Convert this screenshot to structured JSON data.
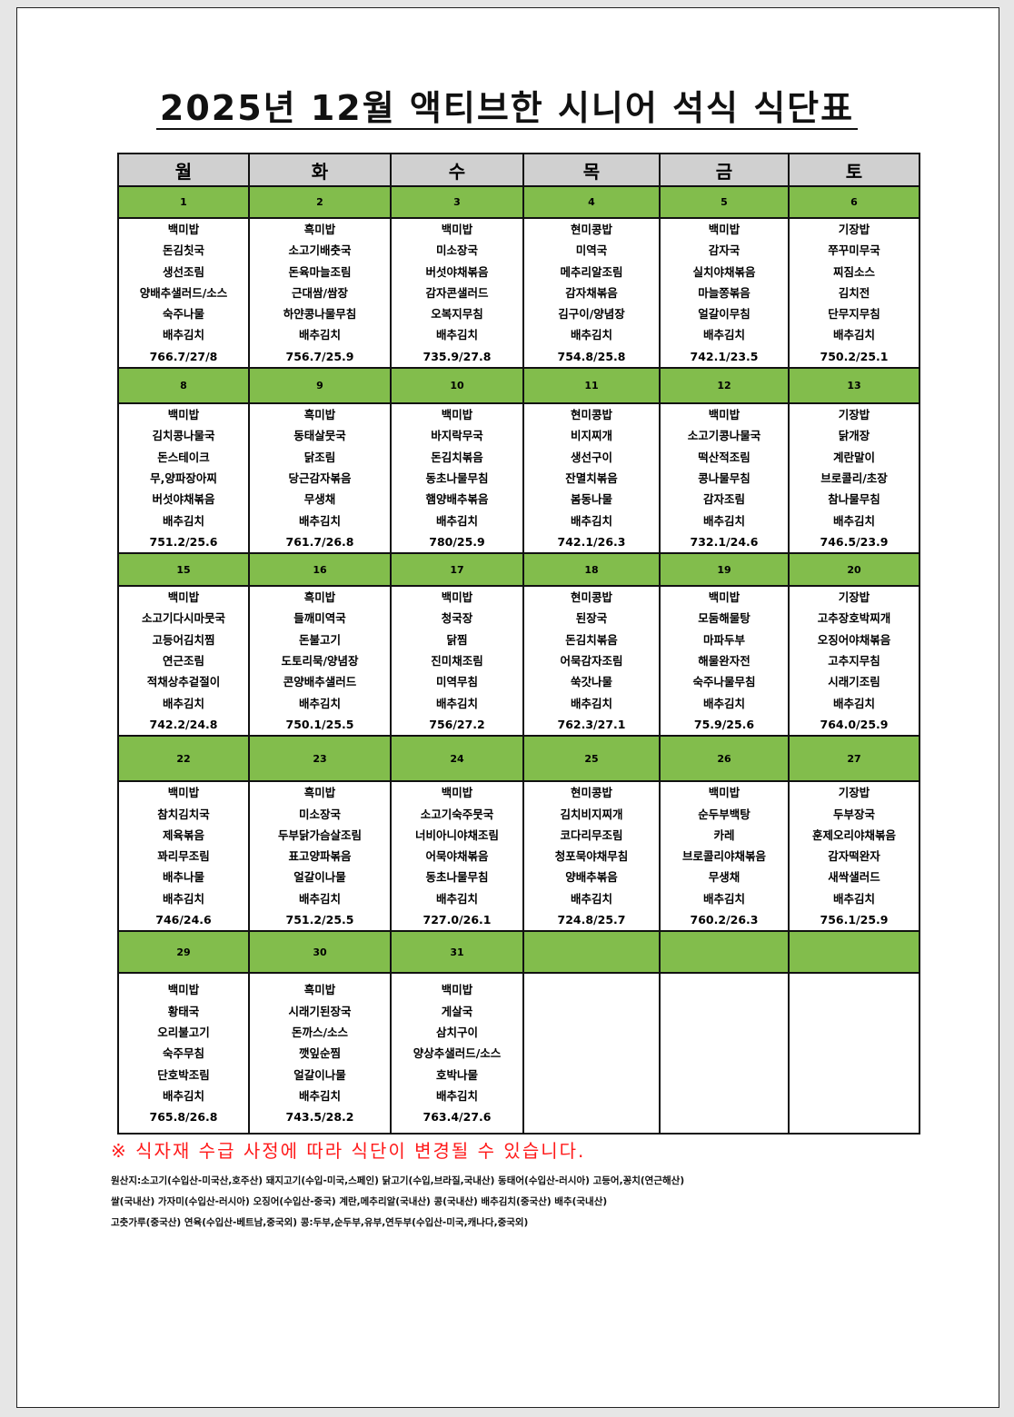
{
  "title": "2025년 12월 액티브한 시니어 석식 식단표",
  "days": [
    "월",
    "화",
    "수",
    "목",
    "금",
    "토"
  ],
  "colors": {
    "header_bg": "#d0d0d0",
    "date_bg": "#82bd4c",
    "notice": "#ff1a1a"
  },
  "weeks": [
    {
      "dates": [
        "1",
        "2",
        "3",
        "4",
        "5",
        "6"
      ],
      "menus": [
        [
          "백미밥",
          "돈김칫국",
          "생선조림",
          "양배추샐러드/소스",
          "숙주나물",
          "배추김치",
          "766.7/27/8"
        ],
        [
          "흑미밥",
          "소고기배춧국",
          "돈육마늘조림",
          "근대쌈/쌈장",
          "하얀콩나물무침",
          "배추김치",
          "756.7/25.9"
        ],
        [
          "백미밥",
          "미소장국",
          "버섯야채볶음",
          "감자콘샐러드",
          "오복지무침",
          "배추김치",
          "735.9/27.8"
        ],
        [
          "현미콩밥",
          "미역국",
          "메추리알조림",
          "감자채볶음",
          "김구이/양념장",
          "배추김치",
          "754.8/25.8"
        ],
        [
          "백미밥",
          "감자국",
          "실치야채볶음",
          "마늘쫑볶음",
          "얼갈이무침",
          "배추김치",
          "742.1/23.5"
        ],
        [
          "기장밥",
          "쭈꾸미무국",
          "찌짐소스",
          "김치전",
          "단무지무침",
          "배추김치",
          "750.2/25.1"
        ]
      ]
    },
    {
      "dates": [
        "8",
        "9",
        "10",
        "11",
        "12",
        "13"
      ],
      "menus": [
        [
          "백미밥",
          "김치콩나물국",
          "돈스테이크",
          "무,양파장아찌",
          "버섯야채볶음",
          "배추김치",
          "751.2/25.6"
        ],
        [
          "흑미밥",
          "동태살뭇국",
          "닭조림",
          "당근감자볶음",
          "무생채",
          "배추김치",
          "761.7/26.8"
        ],
        [
          "백미밥",
          "바지락무국",
          "돈김치볶음",
          "동초나물무침",
          "햄양배추볶음",
          "배추김치",
          "780/25.9"
        ],
        [
          "현미콩밥",
          "비지찌개",
          "생선구이",
          "잔멸치볶음",
          "봄동나물",
          "배추김치",
          "742.1/26.3"
        ],
        [
          "백미밥",
          "소고기콩나물국",
          "떡산적조림",
          "콩나물무침",
          "감자조림",
          "배추김치",
          "732.1/24.6"
        ],
        [
          "기장밥",
          "닭개장",
          "계란말이",
          "브로콜리/초장",
          "참나물무침",
          "배추김치",
          "746.5/23.9"
        ]
      ]
    },
    {
      "dates": [
        "15",
        "16",
        "17",
        "18",
        "19",
        "20"
      ],
      "menus": [
        [
          "백미밥",
          "소고기다시마뭇국",
          "고등어김치찜",
          "연근조림",
          "적채상추겉절이",
          "배추김치",
          "742.2/24.8"
        ],
        [
          "흑미밥",
          "들깨미역국",
          "돈불고기",
          "도토리묵/양념장",
          "콘양배추샐러드",
          "배추김치",
          "750.1/25.5"
        ],
        [
          "백미밥",
          "청국장",
          "닭찜",
          "진미채조림",
          "미역무침",
          "배추김치",
          "756/27.2"
        ],
        [
          "현미콩밥",
          "된장국",
          "돈김치볶음",
          "어묵감자조림",
          "쑥갓나물",
          "배추김치",
          "762.3/27.1"
        ],
        [
          "백미밥",
          "모둠해물탕",
          "마파두부",
          "해물완자전",
          "숙주나물무침",
          "배추김치",
          "75.9/25.6"
        ],
        [
          "기장밥",
          "고추장호박찌개",
          "오징어야채볶음",
          "고추지무침",
          "시래기조림",
          "배추김치",
          "764.0/25.9"
        ]
      ]
    },
    {
      "dates": [
        "22",
        "23",
        "24",
        "25",
        "26",
        "27"
      ],
      "menus": [
        [
          "백미밥",
          "참치김치국",
          "제육볶음",
          "꽈리무조림",
          "배추나물",
          "배추김치",
          "746/24.6"
        ],
        [
          "흑미밥",
          "미소장국",
          "두부닭가슴살조림",
          "표고양파볶음",
          "얼갈이나물",
          "배추김치",
          "751.2/25.5"
        ],
        [
          "백미밥",
          "소고기숙주뭇국",
          "너비아니야채조림",
          "어묵야채볶음",
          "동초나물무침",
          "배추김치",
          "727.0/26.1"
        ],
        [
          "현미콩밥",
          "김치비지찌개",
          "코다리무조림",
          "청포묵야채무침",
          "양배추볶음",
          "배추김치",
          "724.8/25.7"
        ],
        [
          "백미밥",
          "순두부백탕",
          "카레",
          "브로콜리야채볶음",
          "무생채",
          "배추김치",
          "760.2/26.3"
        ],
        [
          "기장밥",
          "두부장국",
          "훈제오리야채볶음",
          "감자떡완자",
          "새싹샐러드",
          "배추김치",
          "756.1/25.9"
        ]
      ]
    },
    {
      "dates": [
        "29",
        "30",
        "31",
        "",
        "",
        ""
      ],
      "menus": [
        [
          "백미밥",
          "황태국",
          "오리불고기",
          "숙주무침",
          "단호박조림",
          "배추김치",
          "765.8/26.8"
        ],
        [
          "흑미밥",
          "시래기된장국",
          "돈까스/소스",
          "깻잎순찜",
          "얼갈이나물",
          "배추김치",
          "743.5/28.2"
        ],
        [
          "백미밥",
          "게살국",
          "삼치구이",
          "양상추샐러드/소스",
          "호박나물",
          "배추김치",
          "763.4/27.6"
        ],
        [],
        [],
        []
      ]
    }
  ],
  "notice": "※ 식자재 수급 사정에 따라 식단이 변경될 수 있습니다.",
  "origin_lines": [
    "원산지:소고기(수입산-미국산,호주산) 돼지고기(수입-미국,스페인) 닭고기(수입,브라질,국내산) 동태어(수입산-러시아) 고등어,꽁치(연근해산)",
    "쌀(국내산) 가자미(수입산-러시아) 오징어(수입산-중국) 계란,메추리알(국내산) 콩(국내산) 배추김치(중국산) 배추(국내산)",
    "고춧가루(중국산) 연육(수입산-베트남,중국외) 콩:두부,순두부,유부,연두부(수입산-미국,캐나다,중국외)"
  ]
}
